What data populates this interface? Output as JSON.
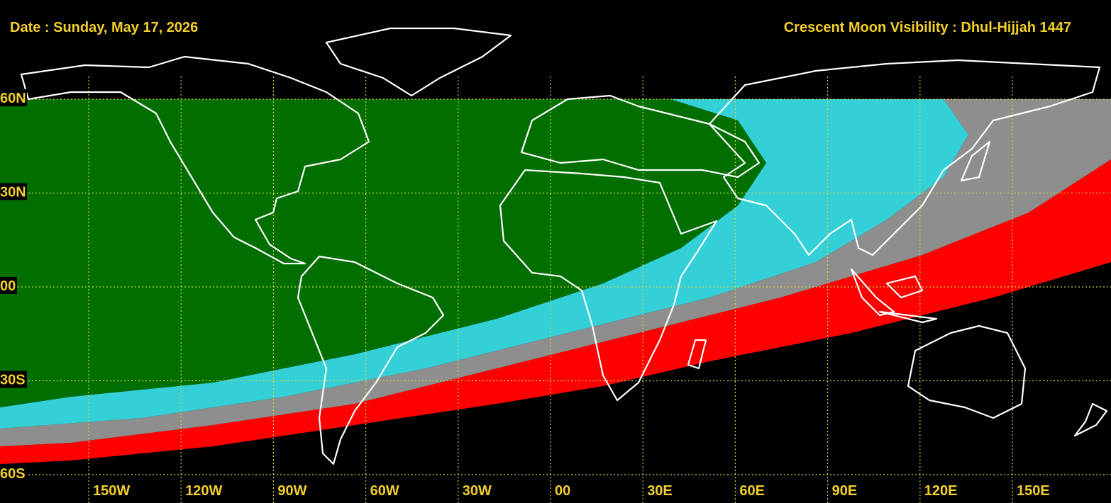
{
  "header": {
    "date": "Date : Sunday, May 17, 2026",
    "title": "Crescent Moon Visibility : Dhul-Hijjah  1447"
  },
  "latitude_labels": [
    "60N",
    "30N",
    "00",
    "30S",
    "60S"
  ],
  "longitude_labels": [
    "150W",
    "120W",
    "90W",
    "60W",
    "30W",
    "00",
    "30E",
    "60E",
    "90E",
    "120E",
    "150E"
  ]
}
